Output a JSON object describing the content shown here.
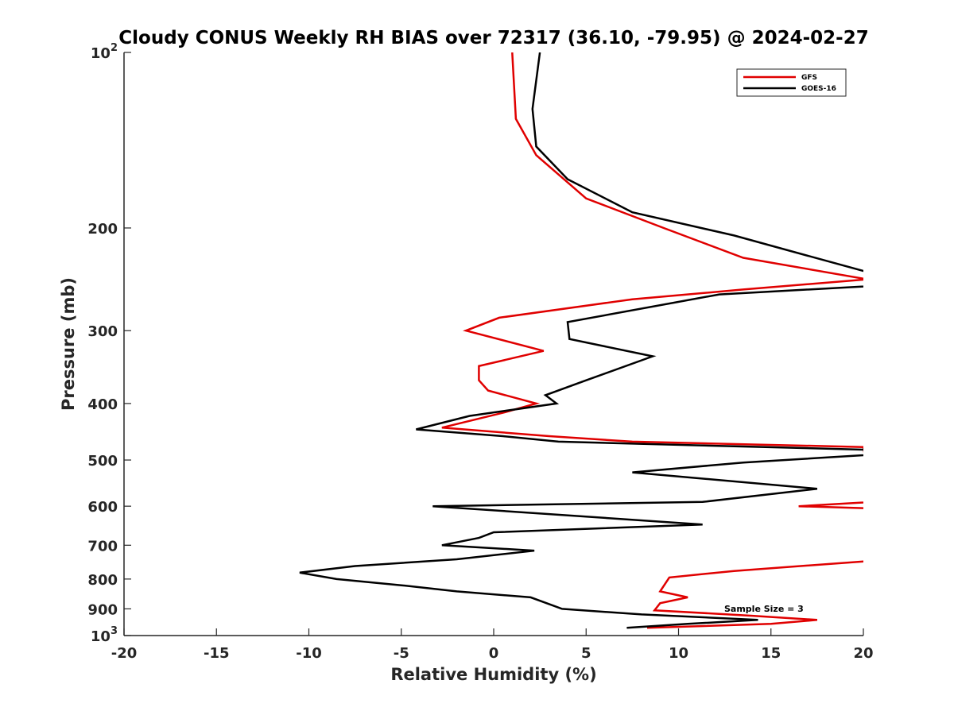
{
  "chart_data": {
    "type": "line",
    "title": "Cloudy CONUS Weekly RH BIAS over 72317 (36.10, -79.95) @ 2024-02-27",
    "xlabel": "Relative Humidity (%)",
    "ylabel": "Pressure (mb)",
    "xlim": [
      -20,
      20
    ],
    "ylim": [
      100,
      1000
    ],
    "y_scale": "log",
    "y_reversed": true,
    "grid": false,
    "legend_position": "top-right",
    "annotation": "Sample Size = 3",
    "x_ticks": [
      -20,
      -15,
      -10,
      -5,
      0,
      5,
      10,
      15,
      20
    ],
    "x_tick_labels": [
      "-20",
      "-15",
      "-10",
      "-5",
      "0",
      "5",
      "10",
      "15",
      "20"
    ],
    "y_ticks": [
      {
        "value": 100,
        "label": "10",
        "sup": "2"
      },
      {
        "value": 200,
        "label": "200",
        "sup": ""
      },
      {
        "value": 300,
        "label": "300",
        "sup": ""
      },
      {
        "value": 400,
        "label": "400",
        "sup": ""
      },
      {
        "value": 500,
        "label": "500",
        "sup": ""
      },
      {
        "value": 600,
        "label": "600",
        "sup": ""
      },
      {
        "value": 700,
        "label": "700",
        "sup": ""
      },
      {
        "value": 800,
        "label": "800",
        "sup": ""
      },
      {
        "value": 900,
        "label": "900",
        "sup": ""
      },
      {
        "value": 1000,
        "label": "10",
        "sup": "3"
      }
    ],
    "series": [
      {
        "name": "GFS",
        "color": "#e00000",
        "points": [
          [
            1.0,
            100
          ],
          [
            1.2,
            130
          ],
          [
            2.3,
            150
          ],
          [
            5.0,
            178
          ],
          [
            9.2,
            200
          ],
          [
            13.5,
            225
          ],
          [
            20.2,
            245
          ],
          [
            13.5,
            255
          ],
          [
            7.5,
            265
          ],
          [
            0.3,
            285
          ],
          [
            -1.5,
            300
          ],
          [
            2.7,
            325
          ],
          [
            -0.8,
            345
          ],
          [
            -0.8,
            365
          ],
          [
            -0.3,
            380
          ],
          [
            2.3,
            400
          ],
          [
            0.5,
            415
          ],
          [
            -2.8,
            440
          ],
          [
            3.0,
            455
          ],
          [
            7.5,
            465
          ],
          [
            20.0,
            475
          ],
          [
            20.5,
            590
          ],
          [
            16.5,
            600
          ],
          [
            20.2,
            605
          ],
          [
            20.3,
            745
          ],
          [
            13.0,
            775
          ],
          [
            9.5,
            795
          ],
          [
            9.0,
            840
          ],
          [
            10.5,
            860
          ],
          [
            9.0,
            880
          ],
          [
            8.7,
            905
          ],
          [
            14.0,
            925
          ],
          [
            17.5,
            940
          ],
          [
            15.0,
            955
          ],
          [
            8.3,
            970
          ]
        ]
      },
      {
        "name": "GOES-16",
        "color": "#000000",
        "points": [
          [
            2.5,
            100
          ],
          [
            2.1,
            125
          ],
          [
            2.3,
            145
          ],
          [
            4.0,
            165
          ],
          [
            7.5,
            188
          ],
          [
            13.0,
            206
          ],
          [
            20.0,
            237
          ],
          [
            22.0,
            247
          ],
          [
            20.0,
            252
          ],
          [
            12.2,
            260
          ],
          [
            4.0,
            290
          ],
          [
            4.1,
            310
          ],
          [
            8.6,
            332
          ],
          [
            5.0,
            365
          ],
          [
            2.8,
            387
          ],
          [
            3.4,
            400
          ],
          [
            -1.3,
            420
          ],
          [
            -4.2,
            443
          ],
          [
            0.5,
            455
          ],
          [
            3.5,
            465
          ],
          [
            20.0,
            480
          ],
          [
            20.3,
            490
          ],
          [
            13.5,
            505
          ],
          [
            7.5,
            525
          ],
          [
            17.5,
            560
          ],
          [
            11.3,
            590
          ],
          [
            -3.3,
            600
          ],
          [
            11.3,
            645
          ],
          [
            0.0,
            665
          ],
          [
            -0.8,
            680
          ],
          [
            -2.8,
            700
          ],
          [
            2.2,
            715
          ],
          [
            -2.0,
            740
          ],
          [
            -7.5,
            760
          ],
          [
            -10.5,
            780
          ],
          [
            -8.5,
            800
          ],
          [
            -5.0,
            820
          ],
          [
            -2.0,
            840
          ],
          [
            2.0,
            860
          ],
          [
            3.7,
            900
          ],
          [
            8.0,
            920
          ],
          [
            14.3,
            940
          ],
          [
            10.5,
            955
          ],
          [
            7.2,
            970
          ]
        ]
      }
    ]
  }
}
